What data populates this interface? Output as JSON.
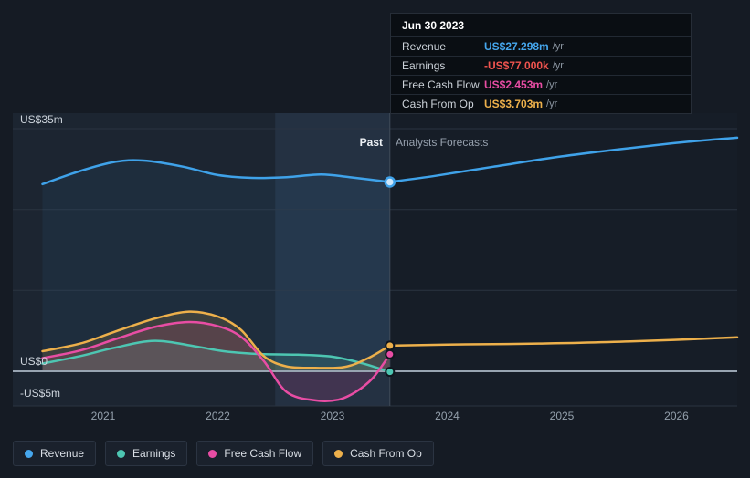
{
  "tooltip": {
    "title": "Jun 30 2023",
    "rows": [
      {
        "label": "Revenue",
        "value": "US$27.298m",
        "suffix": "/yr",
        "color": "#46a7ee"
      },
      {
        "label": "Earnings",
        "value": "-US$77.000k",
        "suffix": "/yr",
        "color": "#f0544f"
      },
      {
        "label": "Free Cash Flow",
        "value": "US$2.453m",
        "suffix": "/yr",
        "color": "#e84da4"
      },
      {
        "label": "Cash From Op",
        "value": "US$3.703m",
        "suffix": "/yr",
        "color": "#edb04b"
      }
    ]
  },
  "axis": {
    "y_labels": [
      "US$35m",
      "US$0",
      "-US$5m"
    ],
    "x_ticks": [
      "2021",
      "2022",
      "2023",
      "2024",
      "2025",
      "2026"
    ]
  },
  "annotations": {
    "past": "Past",
    "forecast": "Analysts Forecasts"
  },
  "legend": [
    {
      "label": "Revenue",
      "color": "#46a7ee"
    },
    {
      "label": "Earnings",
      "color": "#4dc6b2"
    },
    {
      "label": "Free Cash Flow",
      "color": "#e84da4"
    },
    {
      "label": "Cash From Op",
      "color": "#edb04b"
    }
  ],
  "chart_data": {
    "type": "line",
    "x_unit": "calendar year",
    "y_unit": "US$ millions per year",
    "ylim": [
      -5,
      35
    ],
    "x_ticks": [
      2021,
      2022,
      2023,
      2024,
      2025,
      2026
    ],
    "gridlines": [
      35,
      23.33,
      11.67,
      -5
    ],
    "zero_line": 0,
    "divider_x": 2023.5,
    "highlight_band": [
      2022.5,
      2023.5
    ],
    "legend_position": "bottom-left",
    "series": [
      {
        "name": "Revenue",
        "color": "#3fa2e9",
        "area_opacity": 0.07,
        "marker": "ring",
        "value_at_divider": 27.298,
        "past": [
          [
            2020.47,
            27.0
          ],
          [
            2020.8,
            28.9
          ],
          [
            2021.1,
            30.2
          ],
          [
            2021.35,
            30.4
          ],
          [
            2021.7,
            29.5
          ],
          [
            2022.0,
            28.3
          ],
          [
            2022.3,
            27.9
          ],
          [
            2022.6,
            28.0
          ],
          [
            2022.9,
            28.4
          ],
          [
            2023.15,
            28.0
          ],
          [
            2023.5,
            27.298
          ]
        ],
        "forecast": [
          [
            2023.5,
            27.298
          ],
          [
            2023.9,
            28.2
          ],
          [
            2024.4,
            29.5
          ],
          [
            2025.0,
            31.0
          ],
          [
            2025.6,
            32.2
          ],
          [
            2026.1,
            33.1
          ],
          [
            2026.53,
            33.7
          ]
        ]
      },
      {
        "name": "Earnings",
        "color": "#4dc6b2",
        "area_opacity": 0.16,
        "marker": "solid",
        "value_at_divider": -0.077,
        "past": [
          [
            2020.47,
            1.1
          ],
          [
            2020.8,
            2.2
          ],
          [
            2021.1,
            3.4
          ],
          [
            2021.45,
            4.4
          ],
          [
            2021.8,
            3.6
          ],
          [
            2022.05,
            2.9
          ],
          [
            2022.35,
            2.5
          ],
          [
            2022.7,
            2.4
          ],
          [
            2023.0,
            2.1
          ],
          [
            2023.25,
            1.2
          ],
          [
            2023.5,
            -0.077
          ]
        ],
        "forecast": []
      },
      {
        "name": "Free Cash Flow",
        "color": "#e84da4",
        "area_opacity": 0.15,
        "marker": "solid",
        "value_at_divider": 2.453,
        "past": [
          [
            2020.47,
            1.9
          ],
          [
            2020.8,
            3.0
          ],
          [
            2021.1,
            4.6
          ],
          [
            2021.45,
            6.4
          ],
          [
            2021.75,
            7.1
          ],
          [
            2022.0,
            6.5
          ],
          [
            2022.2,
            5.0
          ],
          [
            2022.4,
            1.5
          ],
          [
            2022.6,
            -3.0
          ],
          [
            2022.85,
            -4.2
          ],
          [
            2023.05,
            -4.1
          ],
          [
            2023.2,
            -3.0
          ],
          [
            2023.35,
            -1.0
          ],
          [
            2023.5,
            2.453
          ]
        ],
        "forecast": []
      },
      {
        "name": "Cash From Op",
        "color": "#edb04b",
        "area_opacity": 0.15,
        "marker": "solid",
        "value_at_divider": 3.703,
        "past": [
          [
            2020.47,
            2.9
          ],
          [
            2020.8,
            4.0
          ],
          [
            2021.1,
            5.7
          ],
          [
            2021.45,
            7.6
          ],
          [
            2021.75,
            8.6
          ],
          [
            2022.0,
            7.9
          ],
          [
            2022.2,
            6.0
          ],
          [
            2022.4,
            2.2
          ],
          [
            2022.6,
            0.7
          ],
          [
            2022.85,
            0.5
          ],
          [
            2023.1,
            0.6
          ],
          [
            2023.3,
            1.8
          ],
          [
            2023.5,
            3.703
          ]
        ],
        "forecast": [
          [
            2023.5,
            3.703
          ],
          [
            2024.0,
            3.85
          ],
          [
            2024.8,
            4.0
          ],
          [
            2025.6,
            4.3
          ],
          [
            2026.53,
            4.9
          ]
        ]
      }
    ]
  }
}
